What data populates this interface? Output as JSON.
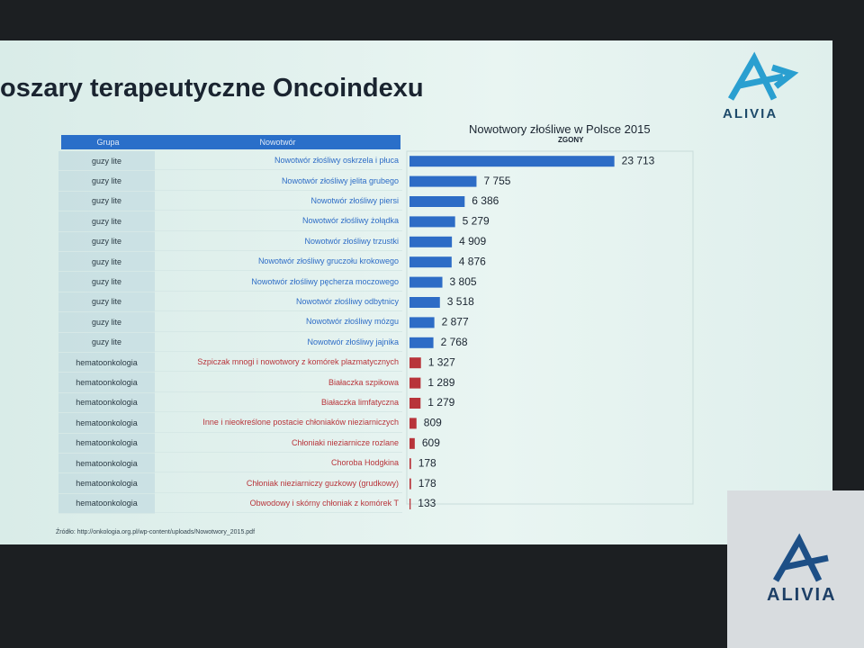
{
  "slide_title": "oszary terapeutyczne Oncoindexu",
  "logo": "ALIVIA",
  "logo_stand": "ALIVIA",
  "source": "Źródło: http://onkologia.org.pl/wp-content/uploads/Nowotwory_2015.pdf",
  "table_headers": [
    "Grupa",
    "Nowotwór"
  ],
  "chart_data": {
    "type": "bar",
    "orientation": "horizontal",
    "title": "Nowotwory złośliwe w Polsce 2015",
    "subtitle": "ZGONY",
    "groups": [
      "guzy lite",
      "guzy lite",
      "guzy lite",
      "guzy lite",
      "guzy lite",
      "guzy lite",
      "guzy lite",
      "guzy lite",
      "guzy lite",
      "guzy lite",
      "hematoonkologia",
      "hematoonkologia",
      "hematoonkologia",
      "hematoonkologia",
      "hematoonkologia",
      "hematoonkologia",
      "hematoonkologia",
      "hematoonkologia"
    ],
    "categories": [
      "Nowotwór złośliwy oskrzela i płuca",
      "Nowotwór złośliwy jelita grubego",
      "Nowotwór złośliwy piersi",
      "Nowotwór złośliwy żołądka",
      "Nowotwór złośliwy trzustki",
      "Nowotwór złośliwy gruczołu krokowego",
      "Nowotwór złośliwy pęcherza moczowego",
      "Nowotwór złośliwy odbytnicy",
      "Nowotwór złośliwy mózgu",
      "Nowotwór złośliwy jajnika",
      "Szpiczak mnogi i nowotwory z komórek plazmatycznych",
      "Białaczka szpikowa",
      "Białaczka limfatyczna",
      "Inne i nieokreślone postacie chłoniaków nieziarniczych",
      "Chłoniaki nieziarnicze rozlane",
      "Choroba Hodgkina",
      "Chłoniak nieziarniczy guzkowy (grudkowy)",
      "Obwodowy i skórny chłoniak z komórek T"
    ],
    "values": [
      23713,
      7755,
      6386,
      5279,
      4909,
      4876,
      3805,
      3518,
      2877,
      2768,
      1327,
      1289,
      1279,
      809,
      609,
      178,
      178,
      133
    ],
    "value_labels": [
      "23 713",
      "7 755",
      "6 386",
      "5 279",
      "4 909",
      "4 876",
      "3 805",
      "3 518",
      "2 877",
      "2 768",
      "1 327",
      "1 289",
      "1 279",
      "809",
      "609",
      "178",
      "178",
      "133"
    ],
    "colors": [
      "#2d6cc6",
      "#2d6cc6",
      "#2d6cc6",
      "#2d6cc6",
      "#2d6cc6",
      "#2d6cc6",
      "#2d6cc6",
      "#2d6cc6",
      "#2d6cc6",
      "#2d6cc6",
      "#b8343a",
      "#b8343a",
      "#b8343a",
      "#b8343a",
      "#b8343a",
      "#b8343a",
      "#b8343a",
      "#b8343a"
    ],
    "xlim": [
      0,
      25000
    ]
  }
}
